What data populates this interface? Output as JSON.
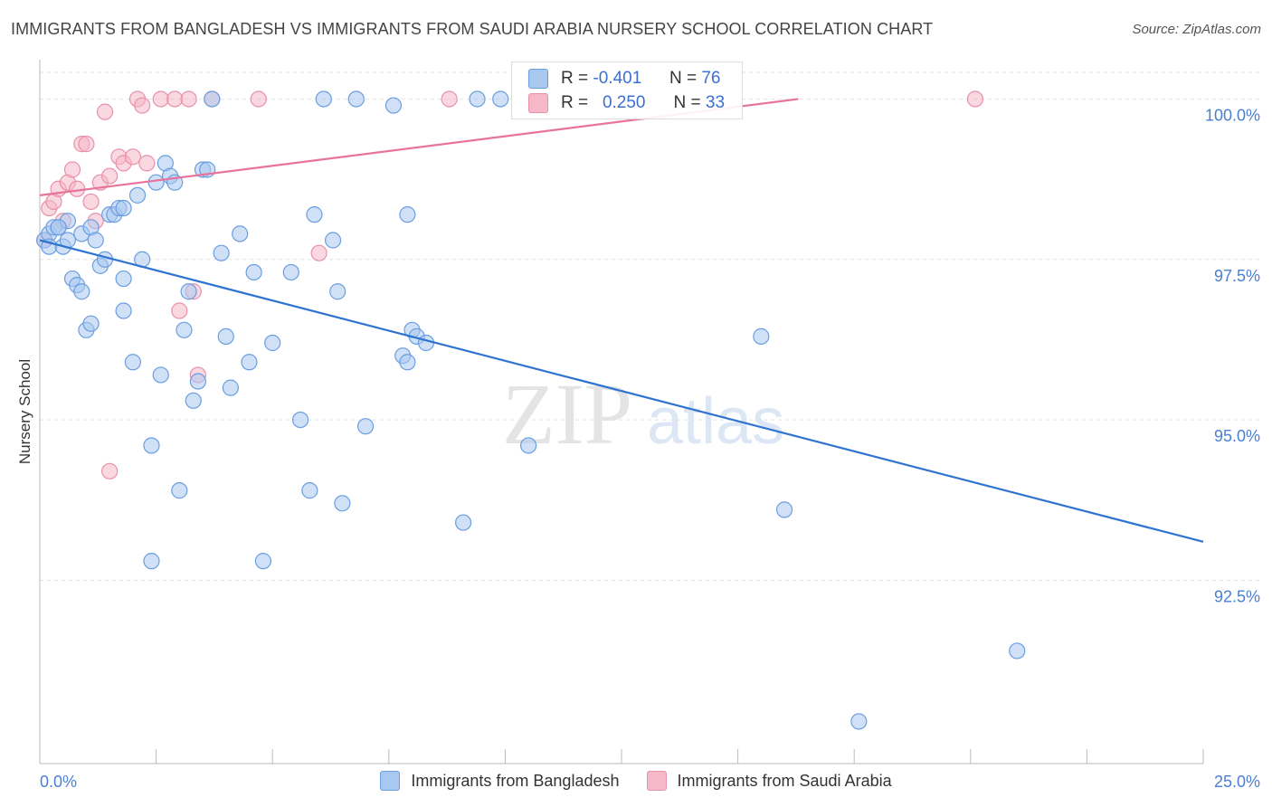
{
  "title": "IMMIGRANTS FROM BANGLADESH VS IMMIGRANTS FROM SAUDI ARABIA NURSERY SCHOOL CORRELATION CHART",
  "source": "Source: ZipAtlas.com",
  "watermark": {
    "zip": "ZIP",
    "atlas": "atlas"
  },
  "colors": {
    "blue_fill": "#a9c8f0",
    "blue_stroke": "#6a9ee0",
    "blue_line": "#2f74d0",
    "pink_fill": "#f5b8c9",
    "pink_stroke": "#e890aa",
    "pink_line": "#e8739a",
    "tick_text": "#4a7fd4"
  },
  "stats": {
    "r_label": "R =",
    "n_label": "N =",
    "blue": {
      "r": "-0.401",
      "n": "76"
    },
    "pink": {
      "r": "0.250",
      "n": "33"
    }
  },
  "legend": {
    "blue": "Immigrants from Bangladesh",
    "pink": "Immigrants from Saudi Arabia"
  },
  "chart_data": {
    "type": "scatter",
    "title": "IMMIGRANTS FROM BANGLADESH VS IMMIGRANTS FROM SAUDI ARABIA NURSERY SCHOOL CORRELATION CHART",
    "xlabel": "",
    "ylabel": "Nursery School",
    "xlim": [
      0,
      25
    ],
    "ylim": [
      89.7,
      100.5
    ],
    "x_tick_labels": {
      "min": "0.0%",
      "max": "25.0%"
    },
    "y_ticks": [
      {
        "value": 100.0,
        "label": "100.0%"
      },
      {
        "value": 97.5,
        "label": "97.5%"
      },
      {
        "value": 95.0,
        "label": "95.0%"
      },
      {
        "value": 92.5,
        "label": "92.5%"
      }
    ],
    "series": [
      {
        "name": "Immigrants from Bangladesh",
        "color": "blue",
        "points": [
          [
            0.1,
            97.8
          ],
          [
            0.2,
            97.9
          ],
          [
            0.2,
            97.7
          ],
          [
            0.3,
            98.0
          ],
          [
            0.4,
            98.0
          ],
          [
            0.5,
            97.7
          ],
          [
            0.6,
            98.1
          ],
          [
            0.7,
            97.2
          ],
          [
            0.8,
            97.1
          ],
          [
            0.9,
            97.0
          ],
          [
            0.9,
            97.9
          ],
          [
            1.0,
            96.4
          ],
          [
            1.1,
            96.5
          ],
          [
            1.1,
            98.0
          ],
          [
            1.3,
            97.4
          ],
          [
            1.4,
            97.5
          ],
          [
            1.5,
            98.2
          ],
          [
            1.6,
            98.2
          ],
          [
            1.7,
            98.3
          ],
          [
            1.8,
            97.2
          ],
          [
            1.8,
            96.7
          ],
          [
            2.0,
            95.9
          ],
          [
            2.1,
            98.5
          ],
          [
            2.2,
            97.5
          ],
          [
            2.4,
            92.8
          ],
          [
            2.5,
            98.7
          ],
          [
            2.6,
            95.7
          ],
          [
            2.7,
            99.0
          ],
          [
            2.8,
            98.8
          ],
          [
            2.9,
            98.7
          ],
          [
            3.1,
            96.4
          ],
          [
            3.2,
            97.0
          ],
          [
            3.3,
            95.3
          ],
          [
            3.4,
            95.6
          ],
          [
            3.5,
            98.9
          ],
          [
            3.6,
            98.9
          ],
          [
            3.7,
            100.0
          ],
          [
            3.9,
            97.6
          ],
          [
            4.0,
            96.3
          ],
          [
            4.1,
            95.5
          ],
          [
            4.3,
            97.9
          ],
          [
            4.5,
            95.9
          ],
          [
            4.6,
            97.3
          ],
          [
            4.8,
            92.8
          ],
          [
            5.0,
            96.2
          ],
          [
            5.4,
            97.3
          ],
          [
            5.6,
            95.0
          ],
          [
            5.8,
            93.9
          ],
          [
            5.9,
            98.2
          ],
          [
            6.1,
            100.0
          ],
          [
            6.3,
            97.8
          ],
          [
            6.4,
            97.0
          ],
          [
            6.5,
            93.7
          ],
          [
            6.8,
            100.0
          ],
          [
            7.0,
            94.9
          ],
          [
            7.6,
            99.9
          ],
          [
            7.8,
            96.0
          ],
          [
            7.9,
            98.2
          ],
          [
            7.9,
            95.9
          ],
          [
            8.0,
            96.4
          ],
          [
            8.1,
            96.3
          ],
          [
            8.3,
            96.2
          ],
          [
            9.1,
            93.4
          ],
          [
            9.4,
            100.0
          ],
          [
            9.9,
            100.0
          ],
          [
            10.5,
            94.6
          ],
          [
            15.5,
            96.3
          ],
          [
            16.0,
            93.6
          ],
          [
            21.0,
            91.4
          ],
          [
            17.6,
            90.3
          ],
          [
            2.4,
            94.6
          ],
          [
            3.0,
            93.9
          ],
          [
            1.8,
            98.3
          ],
          [
            0.4,
            98.0
          ],
          [
            0.6,
            97.8
          ],
          [
            1.2,
            97.8
          ]
        ]
      },
      {
        "name": "Immigrants from Saudi Arabia",
        "color": "pink",
        "points": [
          [
            0.1,
            97.8
          ],
          [
            0.2,
            98.3
          ],
          [
            0.3,
            98.4
          ],
          [
            0.4,
            98.6
          ],
          [
            0.5,
            98.1
          ],
          [
            0.6,
            98.7
          ],
          [
            0.7,
            98.9
          ],
          [
            0.8,
            98.6
          ],
          [
            0.9,
            99.3
          ],
          [
            1.0,
            99.3
          ],
          [
            1.1,
            98.4
          ],
          [
            1.2,
            98.1
          ],
          [
            1.3,
            98.7
          ],
          [
            1.4,
            99.8
          ],
          [
            1.5,
            98.8
          ],
          [
            1.7,
            99.1
          ],
          [
            1.8,
            99.0
          ],
          [
            2.0,
            99.1
          ],
          [
            2.1,
            100.0
          ],
          [
            2.2,
            99.9
          ],
          [
            2.3,
            99.0
          ],
          [
            2.6,
            100.0
          ],
          [
            2.9,
            100.0
          ],
          [
            3.0,
            96.7
          ],
          [
            3.2,
            100.0
          ],
          [
            3.3,
            97.0
          ],
          [
            3.4,
            95.7
          ],
          [
            3.7,
            100.0
          ],
          [
            4.7,
            100.0
          ],
          [
            6.0,
            97.6
          ],
          [
            8.8,
            100.0
          ],
          [
            20.1,
            100.0
          ],
          [
            1.5,
            94.2
          ]
        ]
      }
    ],
    "trend_lines": [
      {
        "series": "Immigrants from Bangladesh",
        "x": [
          0.0,
          25.0
        ],
        "y": [
          97.8,
          93.1
        ]
      },
      {
        "series": "Immigrants from Saudi Arabia",
        "x": [
          0.0,
          16.3
        ],
        "y": [
          98.5,
          100.0
        ]
      }
    ]
  }
}
